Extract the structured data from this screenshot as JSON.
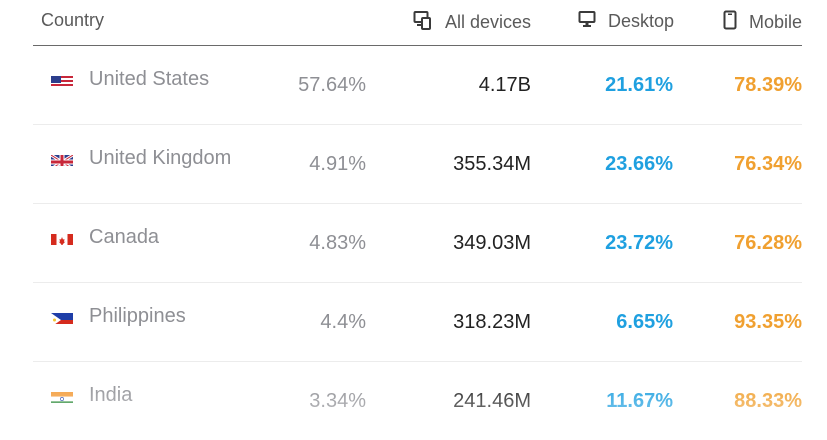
{
  "header": {
    "country": "Country",
    "all_devices": "All devices",
    "desktop": "Desktop",
    "mobile": "Mobile"
  },
  "rows": [
    {
      "country": "United States",
      "share": "57.64%",
      "total": "4.17B",
      "desktop": "21.61%",
      "mobile": "78.39%",
      "flag": "us-flag-icon"
    },
    {
      "country": "United Kingdom",
      "share": "4.91%",
      "total": "355.34M",
      "desktop": "23.66%",
      "mobile": "76.34%",
      "flag": "uk-flag-icon"
    },
    {
      "country": "Canada",
      "share": "4.83%",
      "total": "349.03M",
      "desktop": "23.72%",
      "mobile": "76.28%",
      "flag": "canada-flag-icon"
    },
    {
      "country": "Philippines",
      "share": "4.4%",
      "total": "318.23M",
      "desktop": "6.65%",
      "mobile": "93.35%",
      "flag": "philippines-flag-icon"
    },
    {
      "country": "India",
      "share": "3.34%",
      "total": "241.46M",
      "desktop": "11.67%",
      "mobile": "88.33%",
      "flag": "india-flag-icon"
    }
  ],
  "colors": {
    "desktop": "#1fa0e0",
    "mobile": "#f0a030"
  }
}
